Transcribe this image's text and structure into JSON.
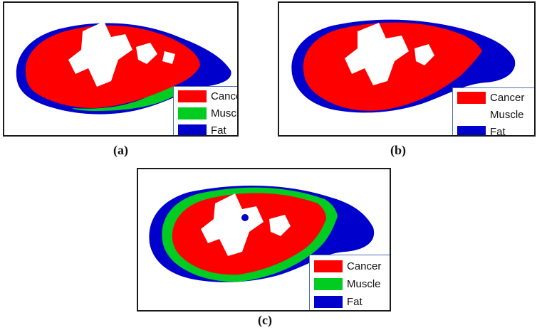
{
  "colors": {
    "cancer": "#ff0000",
    "muscle": "#00cc22",
    "fat": "#0000cc",
    "background": "#ffffff"
  },
  "legend": {
    "cancer": "Cancer",
    "muscle": "Muscle",
    "fat": "Fat"
  },
  "panels": {
    "a": {
      "caption": "(a)"
    },
    "b": {
      "caption": "(b)"
    },
    "c": {
      "caption": "(c)"
    }
  }
}
